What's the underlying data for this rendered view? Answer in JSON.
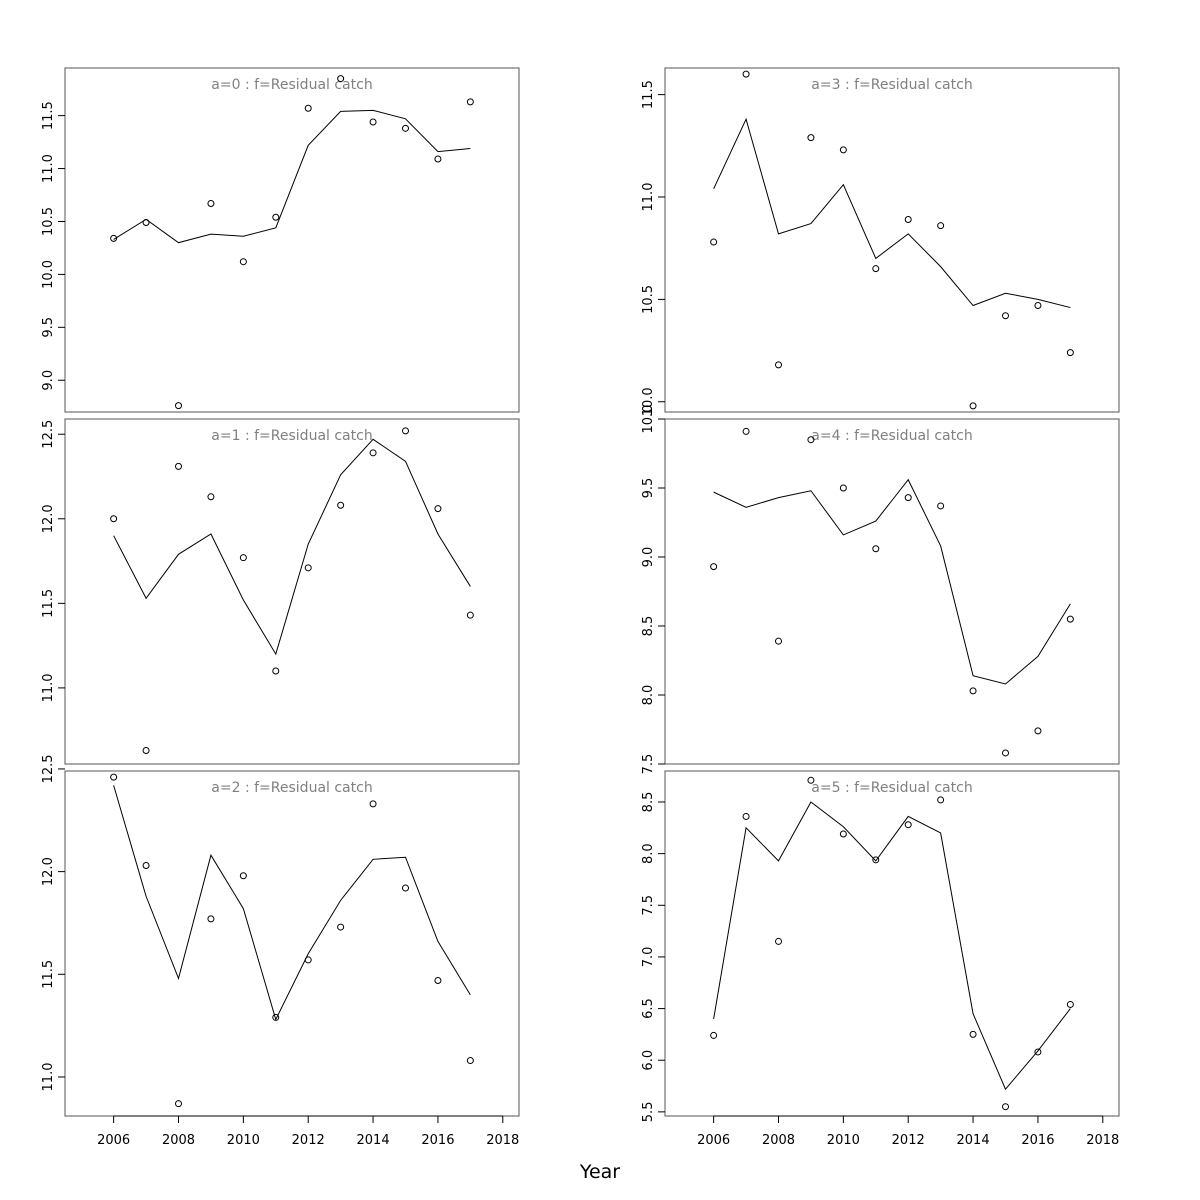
{
  "figure": {
    "xlabel": "Year"
  },
  "chart_data": [
    {
      "type": "line",
      "title": "a=0  :  f=Residual catch",
      "xlabel": "",
      "ylabel": "",
      "xlim": [
        2004.5,
        2018.5
      ],
      "ylim": [
        8.7,
        11.95
      ],
      "xticks": [
        2006,
        2008,
        2010,
        2012,
        2014,
        2016,
        2018
      ],
      "yticks": [
        9.0,
        9.5,
        10.0,
        10.5,
        11.0,
        11.5
      ],
      "x": [
        2006,
        2007,
        2008,
        2009,
        2010,
        2011,
        2012,
        2013,
        2014,
        2015,
        2016,
        2017
      ],
      "series": [
        {
          "kind": "line",
          "values": [
            10.33,
            10.52,
            10.3,
            10.38,
            10.36,
            10.44,
            11.22,
            11.54,
            11.55,
            11.47,
            11.16,
            11.19
          ]
        },
        {
          "kind": "points",
          "values": [
            10.34,
            10.49,
            8.76,
            10.67,
            10.12,
            10.54,
            11.57,
            11.85,
            11.44,
            11.38,
            11.09,
            11.63
          ]
        }
      ]
    },
    {
      "type": "line",
      "title": "a=3  :  f=Residual catch",
      "xlabel": "",
      "ylabel": "",
      "xlim": [
        2004.5,
        2018.5
      ],
      "ylim": [
        9.95,
        11.63
      ],
      "xticks": [
        2006,
        2008,
        2010,
        2012,
        2014,
        2016,
        2018
      ],
      "yticks": [
        10.0,
        10.5,
        11.0,
        11.5
      ],
      "x": [
        2006,
        2007,
        2008,
        2009,
        2010,
        2011,
        2012,
        2013,
        2014,
        2015,
        2016,
        2017
      ],
      "series": [
        {
          "kind": "line",
          "values": [
            11.04,
            11.38,
            10.82,
            10.87,
            11.06,
            10.7,
            10.82,
            10.66,
            10.47,
            10.53,
            10.5,
            10.46
          ]
        },
        {
          "kind": "points",
          "values": [
            10.78,
            11.6,
            10.18,
            11.29,
            11.23,
            10.65,
            10.89,
            10.86,
            9.98,
            10.42,
            10.47,
            10.24
          ]
        }
      ]
    },
    {
      "type": "line",
      "title": "a=1  :  f=Residual catch",
      "xlabel": "",
      "ylabel": "",
      "xlim": [
        2004.5,
        2018.5
      ],
      "ylim": [
        10.55,
        12.59
      ],
      "xticks": [
        2006,
        2008,
        2010,
        2012,
        2014,
        2016,
        2018
      ],
      "yticks": [
        11.0,
        11.5,
        12.0,
        12.5
      ],
      "x": [
        2006,
        2007,
        2008,
        2009,
        2010,
        2011,
        2012,
        2013,
        2014,
        2015,
        2016,
        2017
      ],
      "series": [
        {
          "kind": "line",
          "values": [
            11.9,
            11.53,
            11.79,
            11.91,
            11.52,
            11.2,
            11.85,
            12.26,
            12.47,
            12.34,
            11.91,
            11.6
          ]
        },
        {
          "kind": "points",
          "values": [
            12.0,
            10.63,
            12.31,
            12.13,
            11.77,
            11.1,
            11.71,
            12.08,
            12.39,
            12.52,
            12.06,
            11.43
          ]
        }
      ]
    },
    {
      "type": "line",
      "title": "a=4  :  f=Residual catch",
      "xlabel": "",
      "ylabel": "",
      "xlim": [
        2004.5,
        2018.5
      ],
      "ylim": [
        7.5,
        10.0
      ],
      "xticks": [
        2006,
        2008,
        2010,
        2012,
        2014,
        2016,
        2018
      ],
      "yticks": [
        7.5,
        8.0,
        8.5,
        9.0,
        9.5,
        10.0
      ],
      "x": [
        2006,
        2007,
        2008,
        2009,
        2010,
        2011,
        2012,
        2013,
        2014,
        2015,
        2016,
        2017
      ],
      "series": [
        {
          "kind": "line",
          "values": [
            9.47,
            9.36,
            9.43,
            9.48,
            9.16,
            9.26,
            9.56,
            9.08,
            8.14,
            8.08,
            8.28,
            8.66
          ]
        },
        {
          "kind": "points",
          "values": [
            8.93,
            9.91,
            8.39,
            9.85,
            9.5,
            9.06,
            9.43,
            9.37,
            8.03,
            7.58,
            7.74,
            8.55
          ]
        }
      ]
    },
    {
      "type": "line",
      "title": "a=2  :  f=Residual catch",
      "xlabel": "",
      "ylabel": "",
      "xlim": [
        2004.5,
        2018.5
      ],
      "ylim": [
        10.81,
        12.49
      ],
      "xticks": [
        2006,
        2008,
        2010,
        2012,
        2014,
        2016,
        2018
      ],
      "yticks": [
        11.0,
        11.5,
        12.0,
        12.5
      ],
      "x": [
        2006,
        2007,
        2008,
        2009,
        2010,
        2011,
        2012,
        2013,
        2014,
        2015,
        2016,
        2017
      ],
      "series": [
        {
          "kind": "line",
          "values": [
            12.42,
            11.88,
            11.48,
            12.08,
            11.82,
            11.28,
            11.6,
            11.86,
            12.06,
            12.07,
            11.66,
            11.4
          ]
        },
        {
          "kind": "points",
          "values": [
            12.46,
            12.03,
            10.87,
            11.77,
            11.98,
            11.29,
            11.57,
            11.73,
            12.33,
            11.92,
            11.47,
            11.08
          ]
        }
      ]
    },
    {
      "type": "line",
      "title": "a=5  :  f=Residual catch",
      "xlabel": "",
      "ylabel": "",
      "xlim": [
        2004.5,
        2018.5
      ],
      "ylim": [
        5.46,
        8.8
      ],
      "xticks": [
        2006,
        2008,
        2010,
        2012,
        2014,
        2016,
        2018
      ],
      "yticks": [
        5.5,
        6.0,
        6.5,
        7.0,
        7.5,
        8.0,
        8.5
      ],
      "x": [
        2006,
        2007,
        2008,
        2009,
        2010,
        2011,
        2012,
        2013,
        2014,
        2015,
        2016,
        2017
      ],
      "series": [
        {
          "kind": "line",
          "values": [
            6.4,
            8.25,
            7.93,
            8.5,
            8.26,
            7.93,
            8.36,
            8.2,
            6.45,
            5.72,
            6.09,
            6.5
          ]
        },
        {
          "kind": "points",
          "values": [
            6.24,
            8.36,
            7.15,
            8.71,
            8.19,
            7.94,
            8.28,
            8.52,
            6.25,
            5.55,
            6.08,
            6.54
          ]
        }
      ]
    }
  ]
}
